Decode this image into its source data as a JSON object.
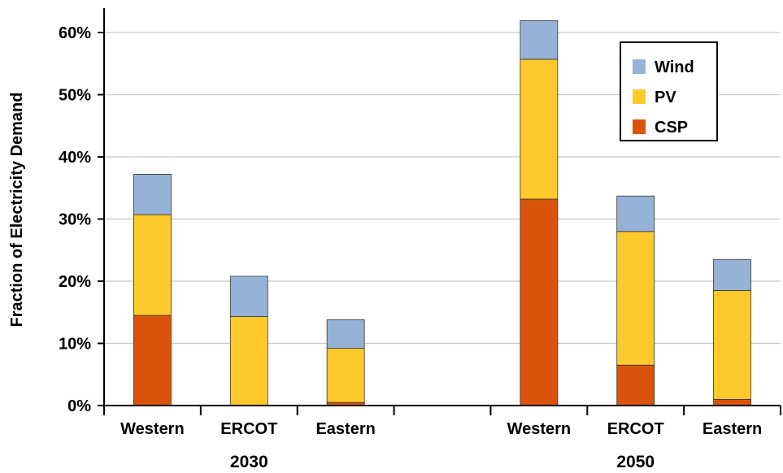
{
  "chart_data": {
    "type": "bar",
    "stacked": true,
    "ylabel": "Fraction of Electricity Demand",
    "ylim": [
      0,
      0.6
    ],
    "yticks": [
      "0%",
      "10%",
      "20%",
      "30%",
      "40%",
      "50%",
      "60%"
    ],
    "grid": true,
    "legend_position": "top-right",
    "groups": [
      {
        "label": "2030",
        "categories": [
          "Western",
          "ERCOT",
          "Eastern"
        ]
      },
      {
        "label": "2050",
        "categories": [
          "Western",
          "ERCOT",
          "Eastern"
        ]
      }
    ],
    "categories": [
      "Western",
      "ERCOT",
      "Eastern",
      "Western",
      "ERCOT",
      "Eastern"
    ],
    "series": [
      {
        "name": "CSP",
        "color": "#D9540A",
        "values": [
          0.145,
          0.0,
          0.005,
          0.332,
          0.065,
          0.01
        ]
      },
      {
        "name": "PV",
        "color": "#FDC92B",
        "values": [
          0.162,
          0.143,
          0.087,
          0.225,
          0.215,
          0.175
        ]
      },
      {
        "name": "Wind",
        "color": "#95B3D7",
        "values": [
          0.065,
          0.065,
          0.046,
          0.062,
          0.057,
          0.05
        ]
      }
    ],
    "legend_order": [
      "Wind",
      "PV",
      "CSP"
    ]
  }
}
